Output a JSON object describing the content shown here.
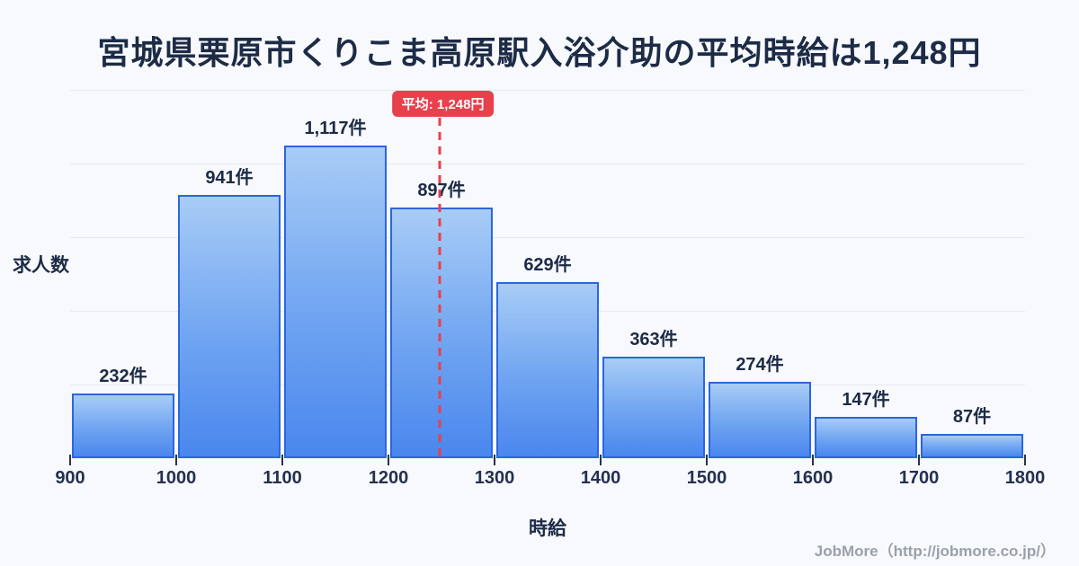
{
  "title": "宮城県栗原市くりこま高原駅入浴介助の平均時給は1,248円",
  "chart_data": {
    "type": "bar",
    "title": "宮城県栗原市くりこま高原駅入浴介助の平均時給は1,248円",
    "xlabel": "時給",
    "ylabel": "求人数",
    "bin_edges": [
      900,
      1000,
      1100,
      1200,
      1300,
      1400,
      1500,
      1600,
      1700,
      1800
    ],
    "x_tick_labels": [
      "900",
      "1000",
      "1100",
      "1200",
      "1300",
      "1400",
      "1500",
      "1600",
      "1700",
      "1800"
    ],
    "values": [
      232,
      941,
      1117,
      897,
      629,
      363,
      274,
      147,
      87
    ],
    "bar_labels": [
      "232件",
      "941件",
      "1,117件",
      "897件",
      "629件",
      "363件",
      "274件",
      "147件",
      "87件"
    ],
    "unit_suffix": "件",
    "average_line": {
      "value": 1248,
      "label": "平均: 1,248円"
    },
    "grid": true,
    "legend_position": "none",
    "ylim": [
      0,
      1316
    ]
  },
  "footer": {
    "credit": "JobMore（http://jobmore.co.jp/）"
  },
  "colors": {
    "background": "#f7f9fc",
    "title_text": "#1d2b46",
    "bar_gradient_top": "#a8ccf6",
    "bar_gradient_bottom": "#4a87ee",
    "bar_border": "#2b66dd",
    "average_red": "#e8404d",
    "grid_line": "#e5e9f1",
    "tick_text": "#253050",
    "footer_text": "#9aa1ab"
  }
}
